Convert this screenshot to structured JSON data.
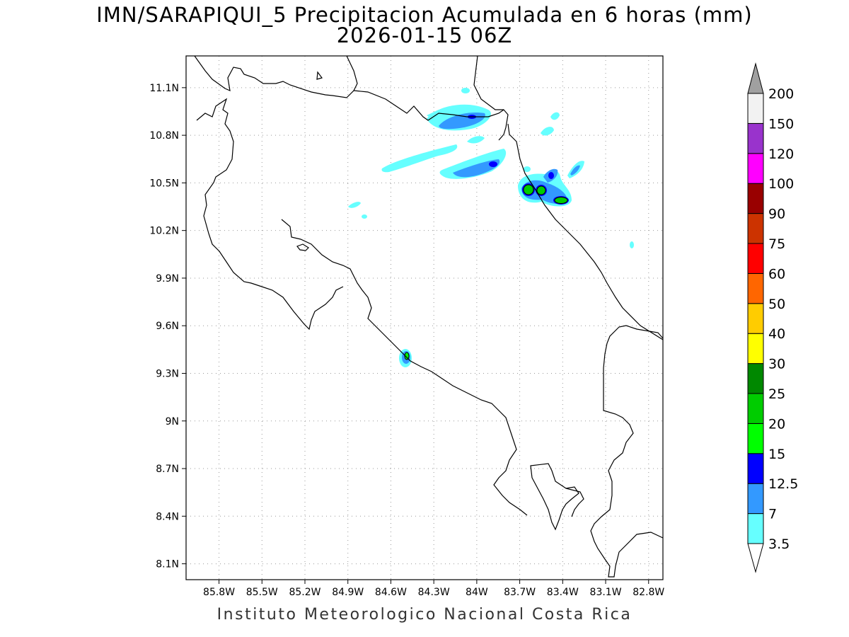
{
  "title": {
    "line1": "IMN/SARAPIQUI_5 Precipitacion Acumulada en 6 horas (mm)",
    "line2": "2026-01-15 06Z"
  },
  "footer": "Instituto Meteorologico Nacional Costa Rica",
  "map": {
    "lon_range": [
      -86.03,
      -82.7
    ],
    "lat_range": [
      8.0,
      11.3
    ],
    "lat_ticks": [
      {
        "value": 11.1,
        "label": "11.1N"
      },
      {
        "value": 10.8,
        "label": "10.8N"
      },
      {
        "value": 10.5,
        "label": "10.5N"
      },
      {
        "value": 10.2,
        "label": "10.2N"
      },
      {
        "value": 9.9,
        "label": "9.9N"
      },
      {
        "value": 9.6,
        "label": "9.6N"
      },
      {
        "value": 9.3,
        "label": "9.3N"
      },
      {
        "value": 9.0,
        "label": "9N"
      },
      {
        "value": 8.7,
        "label": "8.7N"
      },
      {
        "value": 8.4,
        "label": "8.4N"
      },
      {
        "value": 8.1,
        "label": "8.1N"
      }
    ],
    "lon_ticks": [
      {
        "value": -85.8,
        "label": "85.8W"
      },
      {
        "value": -85.5,
        "label": "85.5W"
      },
      {
        "value": -85.2,
        "label": "85.2W"
      },
      {
        "value": -84.9,
        "label": "84.9W"
      },
      {
        "value": -84.6,
        "label": "84.6W"
      },
      {
        "value": -84.3,
        "label": "84.3W"
      },
      {
        "value": -84.0,
        "label": "84W"
      },
      {
        "value": -83.7,
        "label": "83.7W"
      },
      {
        "value": -83.4,
        "label": "83.4W"
      },
      {
        "value": -83.1,
        "label": "83.1W"
      },
      {
        "value": -82.8,
        "label": "82.8W"
      }
    ],
    "grid": "dotted",
    "precip_cells": [
      {
        "lon": -83.98,
        "lat": 10.91,
        "value": 7
      },
      {
        "lon": -83.95,
        "lat": 10.91,
        "value": 12.5
      },
      {
        "lon": -84.17,
        "lat": 10.6,
        "value": 3.5
      },
      {
        "lon": -83.8,
        "lat": 10.57,
        "value": 7
      },
      {
        "lon": -83.73,
        "lat": 10.62,
        "value": 12.5
      },
      {
        "lon": -83.48,
        "lat": 10.46,
        "value": 20
      },
      {
        "lon": -83.39,
        "lat": 10.45,
        "value": 20
      },
      {
        "lon": -83.22,
        "lat": 10.4,
        "value": 20
      },
      {
        "lon": -83.33,
        "lat": 10.55,
        "value": 12.5
      },
      {
        "lon": -84.37,
        "lat": 9.41,
        "value": 15
      },
      {
        "lon": -84.63,
        "lat": 10.36,
        "value": 3.5
      },
      {
        "lon": -82.77,
        "lat": 10.11,
        "value": 3.5
      }
    ]
  },
  "colorbar": {
    "levels": [
      "3.5",
      "7",
      "12.5",
      "15",
      "20",
      "25",
      "30",
      "40",
      "50",
      "60",
      "75",
      "90",
      "100",
      "120",
      "150",
      "200"
    ],
    "colors": [
      "#66ffff",
      "#3399ff",
      "#0000ff",
      "#00ff00",
      "#00cc00",
      "#008800",
      "#ffff00",
      "#ffcc00",
      "#ff6600",
      "#ff0000",
      "#cc3300",
      "#990000",
      "#ff00ff",
      "#9933cc",
      "#f2f2f2",
      "#a0a0a0"
    ]
  }
}
